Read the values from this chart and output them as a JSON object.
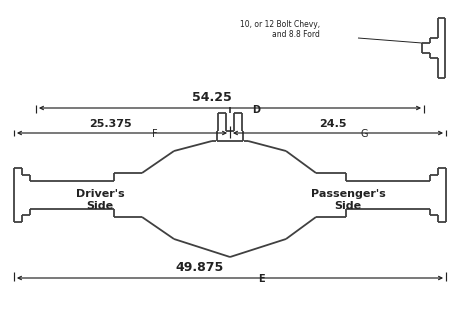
{
  "bg_color": "#ffffff",
  "line_color": "#404040",
  "dim_color": "#222222",
  "lw": 1.3,
  "dlw": 0.85,
  "title_note": "10, or 12 Bolt Chevy,\nand 8.8 Ford",
  "dim_D_label": "54.25",
  "dim_D_letter": "D",
  "dim_F_label": "25.375",
  "dim_F_letter": "F",
  "dim_G_label": "24.5",
  "dim_G_letter": "G",
  "dim_E_label": "49.875",
  "dim_E_letter": "E",
  "driver_label": "Driver's\nSide",
  "passenger_label": "Passenger's\nSide",
  "figw": 4.61,
  "figh": 3.11,
  "dpi": 100
}
